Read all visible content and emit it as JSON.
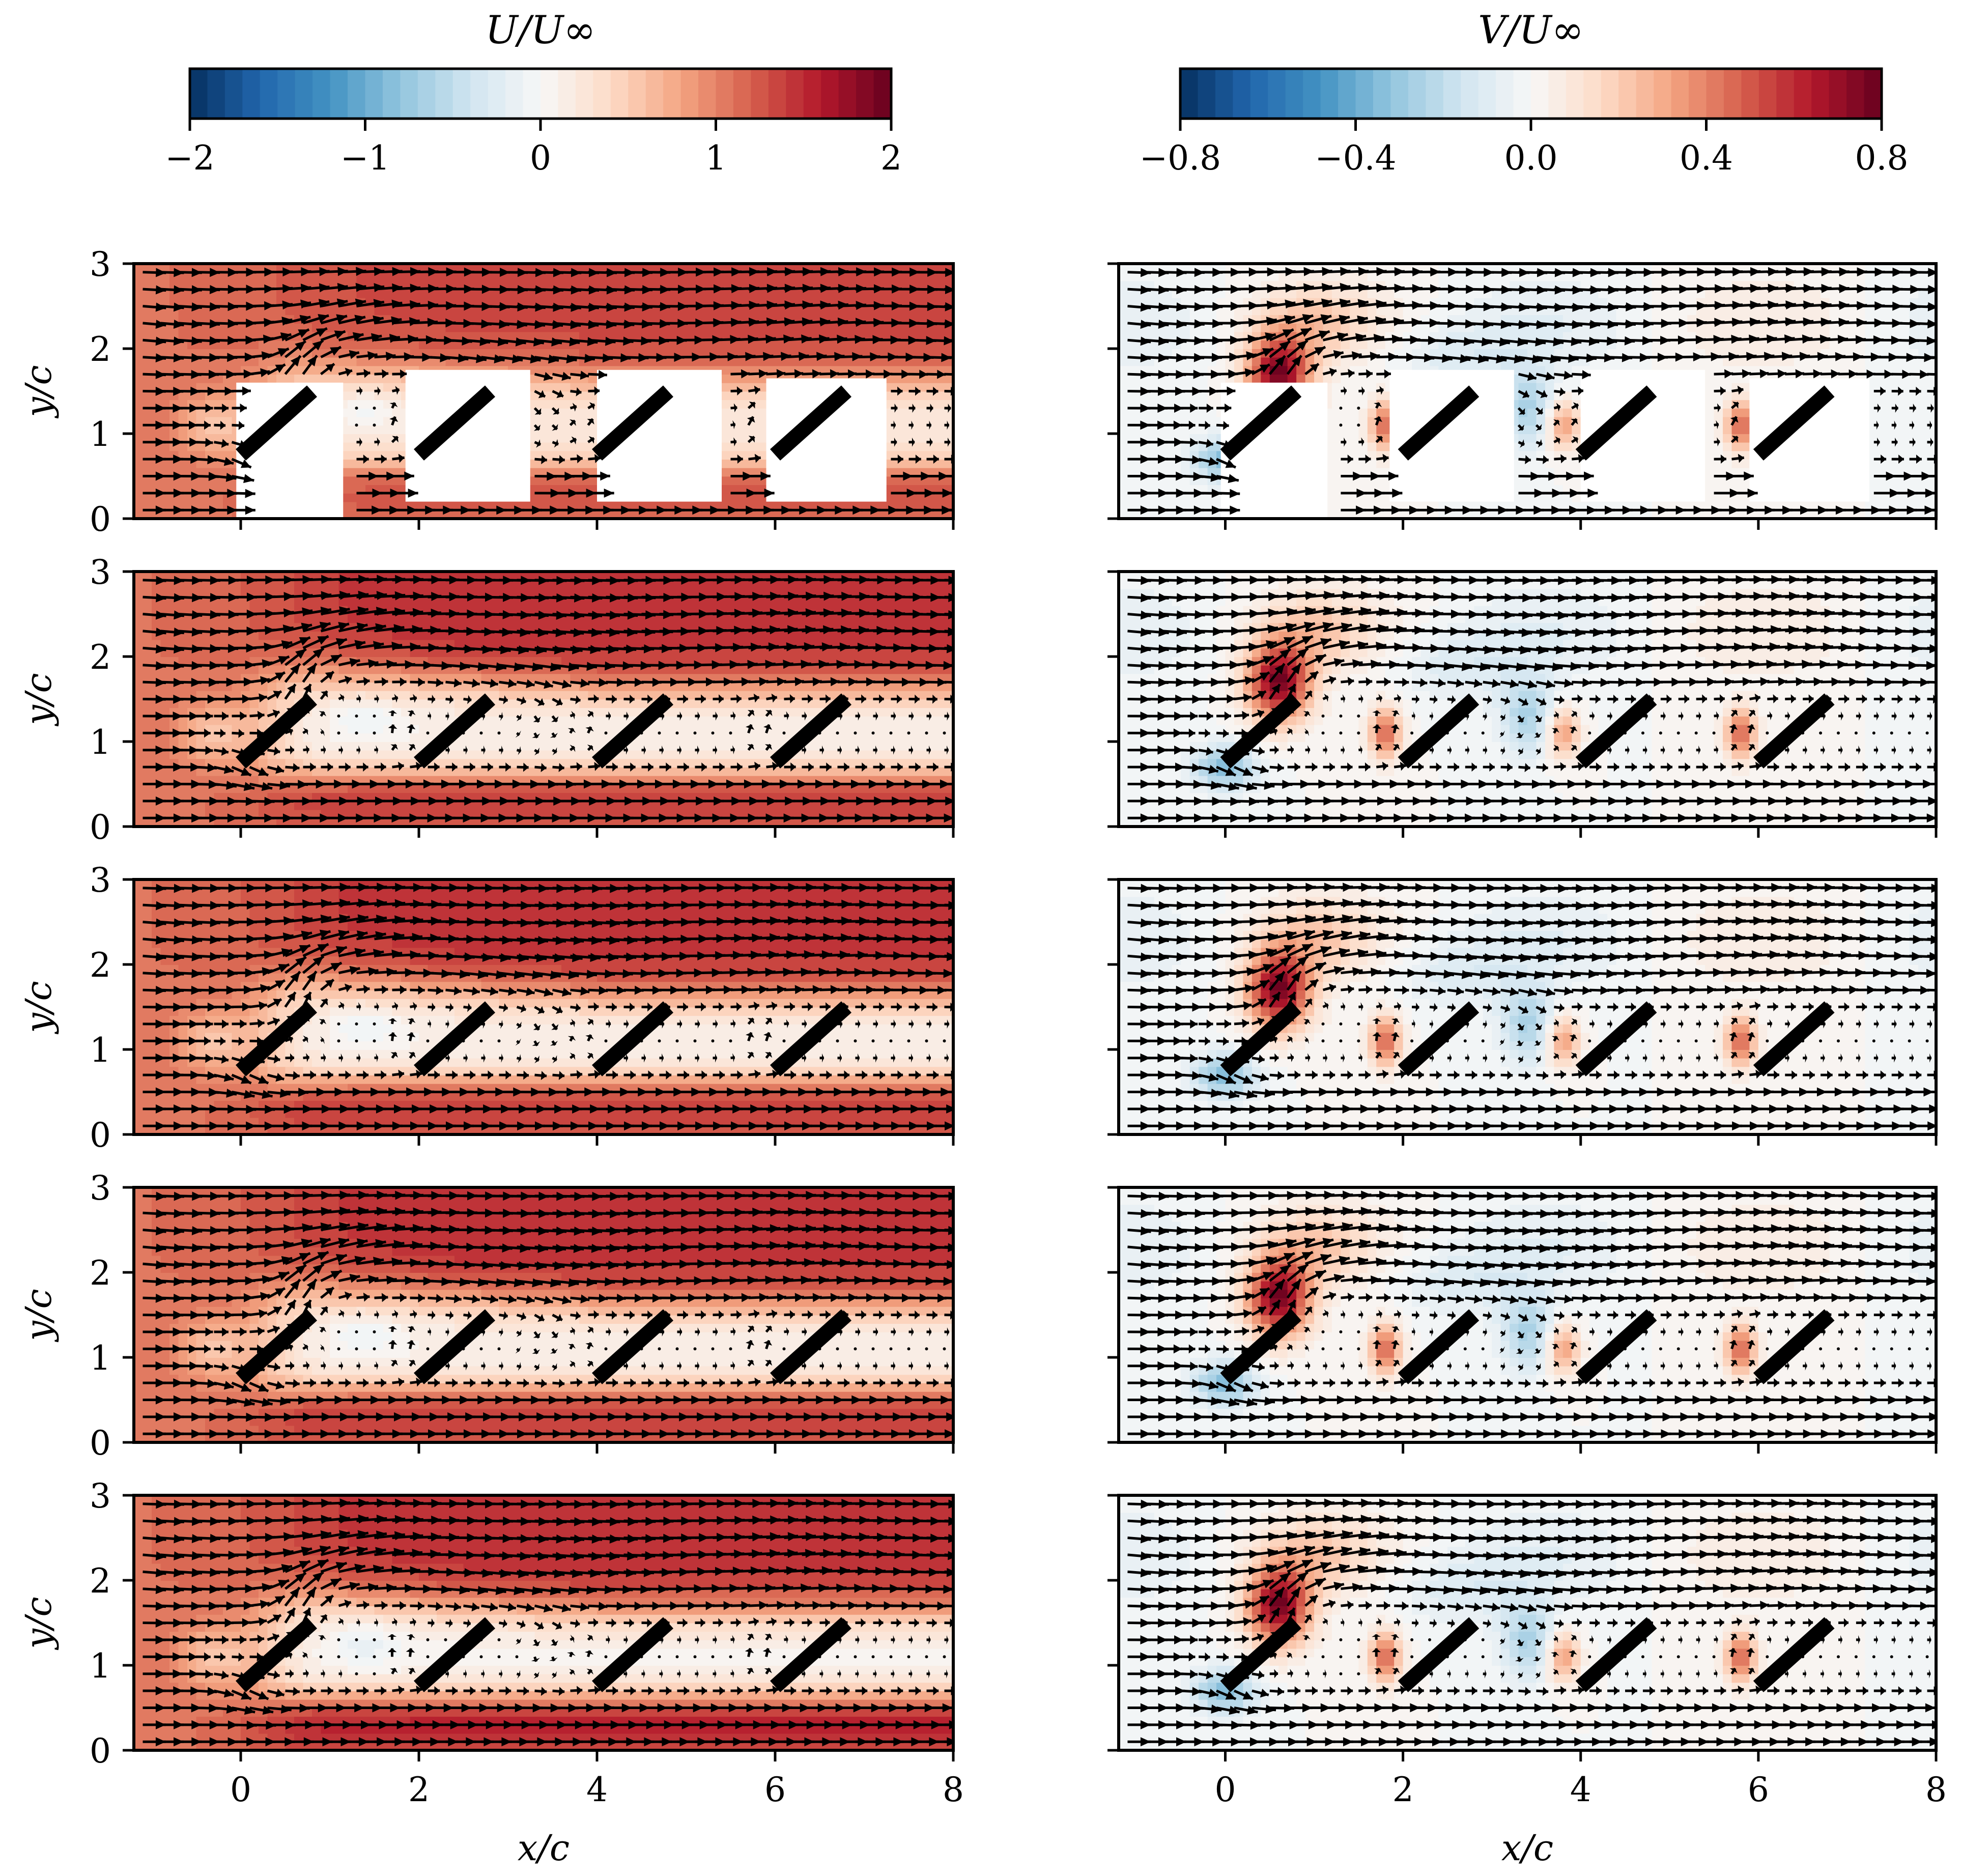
{
  "colors": {
    "colormap": "RdBu_r",
    "stops": [
      "#67001f",
      "#b2182b",
      "#d6604d",
      "#f4a582",
      "#fddbc7",
      "#f7f7f7",
      "#d1e5f0",
      "#92c5de",
      "#4393c3",
      "#2166ac",
      "#053061"
    ],
    "plate": "#000000",
    "arrow": "#000000",
    "mask": "#ffffff"
  },
  "chart_data": {
    "type": "heatmap",
    "description_free": true,
    "layout": "5 rows x 2 columns of filled-contour panels with overlaid quiver arrows",
    "colorbars": [
      {
        "title": "U/U∞",
        "range": [
          -2,
          2
        ],
        "ticks": [
          "−2",
          "−1",
          "0",
          "1",
          "2"
        ],
        "levels": 40
      },
      {
        "title": "V/U∞",
        "range": [
          -0.8,
          0.8
        ],
        "ticks": [
          "−0.8",
          "−0.4",
          "0.0",
          "0.4",
          "0.8"
        ],
        "levels": 40
      }
    ],
    "xlabel": "x/c",
    "ylabel": "y/c",
    "xlim": [
      -1.2,
      8
    ],
    "ylim": [
      0,
      3
    ],
    "xticks": [
      "0",
      "2",
      "4",
      "6",
      "8"
    ],
    "xtick_values": [
      0,
      2,
      4,
      6,
      8
    ],
    "yticks": [
      "0",
      "1",
      "2",
      "3"
    ],
    "ytick_values": [
      0,
      1,
      2,
      3
    ],
    "plates": [
      {
        "x0": 0.0,
        "y0": 0.75,
        "x1": 0.8,
        "y1": 1.5
      },
      {
        "x0": 2.0,
        "y0": 0.75,
        "x1": 2.8,
        "y1": 1.5
      },
      {
        "x0": 4.0,
        "y0": 0.75,
        "x1": 4.8,
        "y1": 1.5
      },
      {
        "x0": 6.0,
        "y0": 0.75,
        "x1": 6.8,
        "y1": 1.5
      }
    ],
    "free_stream": {
      "U": 1.2,
      "V": 0.0
    },
    "rows": [
      {
        "row": 1,
        "wake_U": 0.15,
        "jet_U": 1.25,
        "upper_U": 1.35,
        "masked": true,
        "masks": [
          [
            -0.05,
            0.0,
            1.15,
            1.6
          ],
          [
            1.85,
            0.2,
            3.25,
            1.75
          ],
          [
            4.0,
            0.2,
            5.4,
            1.75
          ],
          [
            5.9,
            0.2,
            7.25,
            1.65
          ]
        ]
      },
      {
        "row": 2,
        "wake_U": 0.05,
        "jet_U": 1.4,
        "upper_U": 1.5,
        "masked": false
      },
      {
        "row": 3,
        "wake_U": 0.05,
        "jet_U": 1.45,
        "upper_U": 1.5,
        "masked": false
      },
      {
        "row": 4,
        "wake_U": 0.05,
        "jet_U": 1.45,
        "upper_U": 1.5,
        "masked": false
      },
      {
        "row": 5,
        "wake_U": 0.0,
        "jet_U": 1.6,
        "upper_U": 1.5,
        "masked": false
      }
    ],
    "v_features": [
      {
        "x": 0.6,
        "y": 1.7,
        "V": 0.75,
        "sx": 0.35,
        "sy": 0.45
      },
      {
        "x": 0.0,
        "y": 0.7,
        "V": -0.35,
        "sx": 0.35,
        "sy": 0.25
      },
      {
        "x": 1.8,
        "y": 1.1,
        "V": 0.45,
        "sx": 0.18,
        "sy": 0.3
      },
      {
        "x": 3.8,
        "y": 1.1,
        "V": 0.35,
        "sx": 0.18,
        "sy": 0.3
      },
      {
        "x": 5.8,
        "y": 1.1,
        "V": 0.45,
        "sx": 0.18,
        "sy": 0.3
      },
      {
        "x": 3.4,
        "y": 1.3,
        "V": -0.25,
        "sx": 0.3,
        "sy": 0.45
      },
      {
        "x": 2.6,
        "y": 1.9,
        "V": -0.1,
        "sx": 0.8,
        "sy": 0.4
      },
      {
        "x": 1.0,
        "y": 2.3,
        "V": 0.15,
        "sx": 0.6,
        "sy": 0.4
      }
    ]
  }
}
